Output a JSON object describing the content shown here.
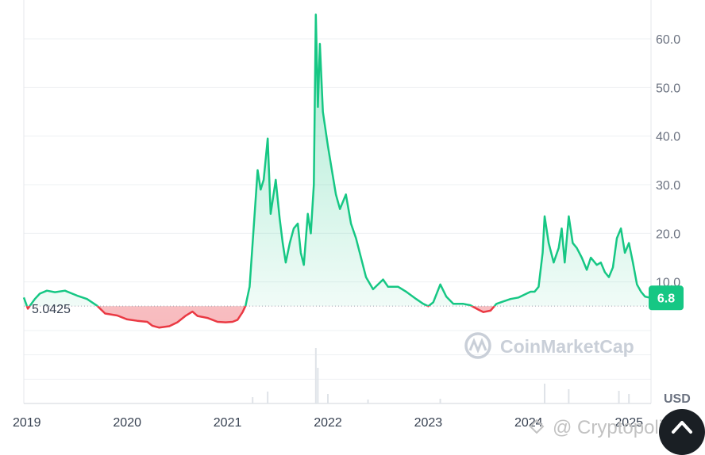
{
  "chart_data": {
    "type": "area",
    "title": "",
    "xlabel": "",
    "ylabel": "",
    "unit": "USD",
    "ylim": [
      -15,
      68
    ],
    "yticks": [
      10,
      20,
      30,
      40,
      50,
      60
    ],
    "ytick_labels": [
      "10.0",
      "20.0",
      "30.0",
      "40.0",
      "50.0",
      "60.0"
    ],
    "xlim": [
      2018.97,
      2025.22
    ],
    "xtick_labels": [
      "2019",
      "2020",
      "2021",
      "2022",
      "2023",
      "2024",
      "2025"
    ],
    "xticks": [
      2019,
      2020,
      2021,
      2022,
      2023,
      2024,
      2025
    ],
    "baseline_value": 5.0425,
    "baseline_label": "5.0425",
    "current_price": 6.8,
    "current_price_label": "6.8",
    "colors": {
      "up": "#16c784",
      "down": "#ea3943",
      "up_fill": "#16c784",
      "down_fill": "#ea3943"
    },
    "grid": true,
    "series": [
      {
        "points": [
          [
            2018.97,
            6.8
          ],
          [
            2019.01,
            4.5
          ],
          [
            2019.08,
            6.5
          ],
          [
            2019.13,
            7.6
          ],
          [
            2019.2,
            8.2
          ],
          [
            2019.28,
            7.9
          ],
          [
            2019.38,
            8.2
          ],
          [
            2019.5,
            7.2
          ],
          [
            2019.6,
            6.5
          ],
          [
            2019.7,
            5.1
          ],
          [
            2019.78,
            3.5
          ],
          [
            2019.9,
            3.1
          ],
          [
            2020.0,
            2.3
          ],
          [
            2020.1,
            2.0
          ],
          [
            2020.2,
            1.8
          ],
          [
            2020.25,
            1.0
          ],
          [
            2020.32,
            0.6
          ],
          [
            2020.42,
            0.9
          ],
          [
            2020.5,
            1.7
          ],
          [
            2020.58,
            3.0
          ],
          [
            2020.65,
            3.9
          ],
          [
            2020.7,
            3.0
          ],
          [
            2020.8,
            2.6
          ],
          [
            2020.9,
            1.8
          ],
          [
            2020.98,
            1.7
          ],
          [
            2021.05,
            1.8
          ],
          [
            2021.1,
            2.2
          ],
          [
            2021.15,
            3.8
          ],
          [
            2021.18,
            5.1
          ],
          [
            2021.22,
            9.0
          ],
          [
            2021.25,
            18.0
          ],
          [
            2021.28,
            27.0
          ],
          [
            2021.3,
            33.0
          ],
          [
            2021.33,
            29.0
          ],
          [
            2021.36,
            31.0
          ],
          [
            2021.4,
            39.5
          ],
          [
            2021.43,
            24.0
          ],
          [
            2021.48,
            31.0
          ],
          [
            2021.52,
            23.0
          ],
          [
            2021.55,
            18.0
          ],
          [
            2021.58,
            14.0
          ],
          [
            2021.62,
            18.0
          ],
          [
            2021.66,
            21.0
          ],
          [
            2021.7,
            22.0
          ],
          [
            2021.73,
            16.0
          ],
          [
            2021.76,
            13.5
          ],
          [
            2021.8,
            24.0
          ],
          [
            2021.83,
            20.0
          ],
          [
            2021.86,
            30.0
          ],
          [
            2021.88,
            65.0
          ],
          [
            2021.9,
            46.0
          ],
          [
            2021.92,
            59.0
          ],
          [
            2021.95,
            45.0
          ],
          [
            2022.0,
            38.0
          ],
          [
            2022.04,
            33.0
          ],
          [
            2022.08,
            28.0
          ],
          [
            2022.12,
            25.0
          ],
          [
            2022.18,
            28.0
          ],
          [
            2022.23,
            22.0
          ],
          [
            2022.28,
            19.0
          ],
          [
            2022.33,
            15.0
          ],
          [
            2022.38,
            11.0
          ],
          [
            2022.45,
            8.5
          ],
          [
            2022.55,
            10.5
          ],
          [
            2022.6,
            9.0
          ],
          [
            2022.7,
            9.0
          ],
          [
            2022.78,
            8.0
          ],
          [
            2022.88,
            6.5
          ],
          [
            2022.95,
            5.5
          ],
          [
            2023.0,
            5.0
          ],
          [
            2023.05,
            5.8
          ],
          [
            2023.12,
            9.5
          ],
          [
            2023.18,
            7.0
          ],
          [
            2023.25,
            5.5
          ],
          [
            2023.35,
            5.5
          ],
          [
            2023.42,
            5.2
          ],
          [
            2023.5,
            4.3
          ],
          [
            2023.55,
            3.8
          ],
          [
            2023.62,
            4.1
          ],
          [
            2023.68,
            5.5
          ],
          [
            2023.75,
            6.0
          ],
          [
            2023.82,
            6.5
          ],
          [
            2023.9,
            6.8
          ],
          [
            2023.97,
            7.5
          ],
          [
            2024.02,
            8.0
          ],
          [
            2024.06,
            8.0
          ],
          [
            2024.1,
            9.0
          ],
          [
            2024.14,
            16.0
          ],
          [
            2024.16,
            23.5
          ],
          [
            2024.2,
            18.0
          ],
          [
            2024.25,
            14.0
          ],
          [
            2024.3,
            17.0
          ],
          [
            2024.33,
            21.0
          ],
          [
            2024.36,
            14.0
          ],
          [
            2024.4,
            23.5
          ],
          [
            2024.44,
            18.0
          ],
          [
            2024.48,
            17.0
          ],
          [
            2024.53,
            15.0
          ],
          [
            2024.58,
            12.5
          ],
          [
            2024.62,
            15.0
          ],
          [
            2024.68,
            13.5
          ],
          [
            2024.72,
            14.0
          ],
          [
            2024.76,
            12.0
          ],
          [
            2024.8,
            11.0
          ],
          [
            2024.84,
            13.0
          ],
          [
            2024.88,
            19.0
          ],
          [
            2024.92,
            21.0
          ],
          [
            2024.96,
            16.0
          ],
          [
            2025.0,
            18.0
          ],
          [
            2025.04,
            14.0
          ],
          [
            2025.08,
            9.5
          ],
          [
            2025.12,
            8.0
          ],
          [
            2025.16,
            7.0
          ],
          [
            2025.2,
            6.8
          ]
        ]
      }
    ],
    "volume": [
      [
        2021.25,
        0.8
      ],
      [
        2021.4,
        1.5
      ],
      [
        2021.88,
        7.0
      ],
      [
        2021.9,
        4.5
      ],
      [
        2022.0,
        1.2
      ],
      [
        2022.4,
        0.5
      ],
      [
        2023.12,
        0.6
      ],
      [
        2024.16,
        2.5
      ],
      [
        2024.4,
        1.8
      ],
      [
        2024.9,
        1.6
      ],
      [
        2025.0,
        1.2
      ]
    ],
    "watermarks": {
      "brand": "CoinMarketCap",
      "source": "@ Cryptopolitan"
    }
  },
  "ui": {
    "float_button_icon": "chevron-up-icon"
  }
}
